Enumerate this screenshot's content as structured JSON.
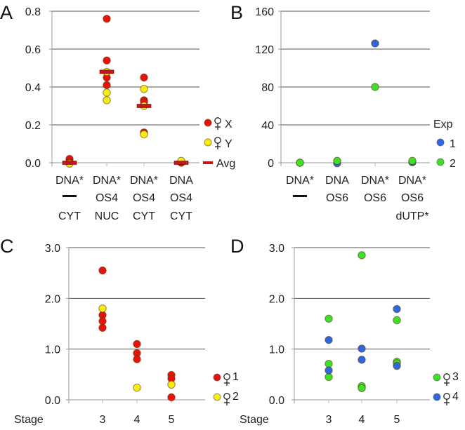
{
  "chart_data": [
    {
      "panel": "A",
      "type": "scatter",
      "ylim": [
        0,
        0.8
      ],
      "yticks": [
        "0.0",
        "0.2",
        "0.4",
        "0.6",
        "0.8"
      ],
      "ytick_values": [
        0,
        0.2,
        0.4,
        0.6,
        0.8
      ],
      "categories": [
        [
          "DNA*",
          "—",
          "CYT"
        ],
        [
          "DNA*",
          "OS4",
          "NUC"
        ],
        [
          "DNA*",
          "OS4",
          "CYT"
        ],
        [
          "DNA",
          "OS4",
          "CYT"
        ]
      ],
      "series": [
        {
          "name": "♀ X",
          "color": "#e8110c",
          "points": [
            [
              0,
              0.02
            ],
            [
              0,
              0.005
            ],
            [
              1,
              0.76
            ],
            [
              1,
              0.54
            ],
            [
              1,
              0.45
            ],
            [
              1,
              0.41
            ],
            [
              2,
              0.45
            ],
            [
              2,
              0.33
            ],
            [
              2,
              0.32
            ],
            [
              2,
              0.16
            ],
            [
              3,
              0.0
            ]
          ]
        },
        {
          "name": "♀ Y",
          "color": "#f6ec12",
          "points": [
            [
              0,
              -0.005
            ],
            [
              1,
              0.48
            ],
            [
              1,
              0.37
            ],
            [
              1,
              0.33
            ],
            [
              2,
              0.39
            ],
            [
              2,
              0.3
            ],
            [
              2,
              0.15
            ],
            [
              3,
              0.01
            ]
          ]
        }
      ],
      "averages": [
        0.0,
        0.48,
        0.3,
        0.0
      ],
      "avg_label": "Avg",
      "avg_color": "#c0191a",
      "grid": true,
      "legend": "right"
    },
    {
      "panel": "B",
      "type": "scatter",
      "ylim": [
        0,
        160
      ],
      "yticks": [
        "0",
        "40",
        "80",
        "120",
        "160"
      ],
      "ytick_values": [
        0,
        40,
        80,
        120,
        160
      ],
      "categories": [
        [
          "DNA*",
          "—",
          ""
        ],
        [
          "DNA",
          "OS6",
          ""
        ],
        [
          "DNA*",
          "OS6",
          ""
        ],
        [
          "DNA*",
          "OS6",
          "dUTP*"
        ]
      ],
      "legend_title": "Exp",
      "series": [
        {
          "name": "1",
          "color": "#2e67e0",
          "points": [
            [
              0,
              0
            ],
            [
              1,
              -0.5
            ],
            [
              2,
              126
            ],
            [
              3,
              0.5
            ]
          ]
        },
        {
          "name": "2",
          "color": "#3fe02a",
          "points": [
            [
              0,
              0
            ],
            [
              1,
              2
            ],
            [
              2,
              80
            ],
            [
              3,
              2
            ]
          ]
        }
      ],
      "grid": true,
      "legend": "right"
    },
    {
      "panel": "C",
      "type": "scatter",
      "ylim": [
        0,
        3
      ],
      "yticks": [
        "0.0",
        "1.0",
        "2.0",
        "3.0"
      ],
      "ytick_values": [
        0,
        1,
        2,
        3
      ],
      "xlabel": "Stage",
      "categories": [
        [
          "3"
        ],
        [
          "4"
        ],
        [
          "5"
        ]
      ],
      "series": [
        {
          "name": "♀ 1",
          "color": "#e8110c",
          "points": [
            [
              0,
              2.55
            ],
            [
              0,
              1.67
            ],
            [
              0,
              1.55
            ],
            [
              0,
              1.42
            ],
            [
              1,
              1.1
            ],
            [
              1,
              0.92
            ],
            [
              1,
              0.8
            ],
            [
              2,
              0.49
            ],
            [
              2,
              0.42
            ],
            [
              2,
              0.05
            ]
          ]
        },
        {
          "name": "♀ 2",
          "color": "#f6ec12",
          "points": [
            [
              0,
              1.8
            ],
            [
              1,
              0.24
            ],
            [
              2,
              0.3
            ]
          ]
        }
      ],
      "grid": true,
      "legend": "right"
    },
    {
      "panel": "D",
      "type": "scatter",
      "ylim": [
        0,
        3
      ],
      "yticks": [
        "0.0",
        "1.0",
        "2.0",
        "3.0"
      ],
      "ytick_values": [
        0,
        1,
        2,
        3
      ],
      "xlabel": "Stage",
      "categories": [
        [
          "3"
        ],
        [
          "4"
        ],
        [
          "5"
        ]
      ],
      "series": [
        {
          "name": "♀ 3",
          "color": "#3fe02a",
          "points": [
            [
              0,
              1.6
            ],
            [
              0,
              0.71
            ],
            [
              0,
              0.45
            ],
            [
              1,
              2.85
            ],
            [
              1,
              0.27
            ],
            [
              1,
              0.23
            ],
            [
              2,
              1.57
            ],
            [
              2,
              0.75
            ],
            [
              2,
              0.72
            ]
          ]
        },
        {
          "name": "♀ 4",
          "color": "#2e67e0",
          "points": [
            [
              0,
              1.18
            ],
            [
              0,
              0.58
            ],
            [
              1,
              1.01
            ],
            [
              1,
              0.79
            ],
            [
              2,
              1.79
            ],
            [
              2,
              0.67
            ]
          ]
        }
      ],
      "grid": true,
      "legend": "right"
    }
  ]
}
